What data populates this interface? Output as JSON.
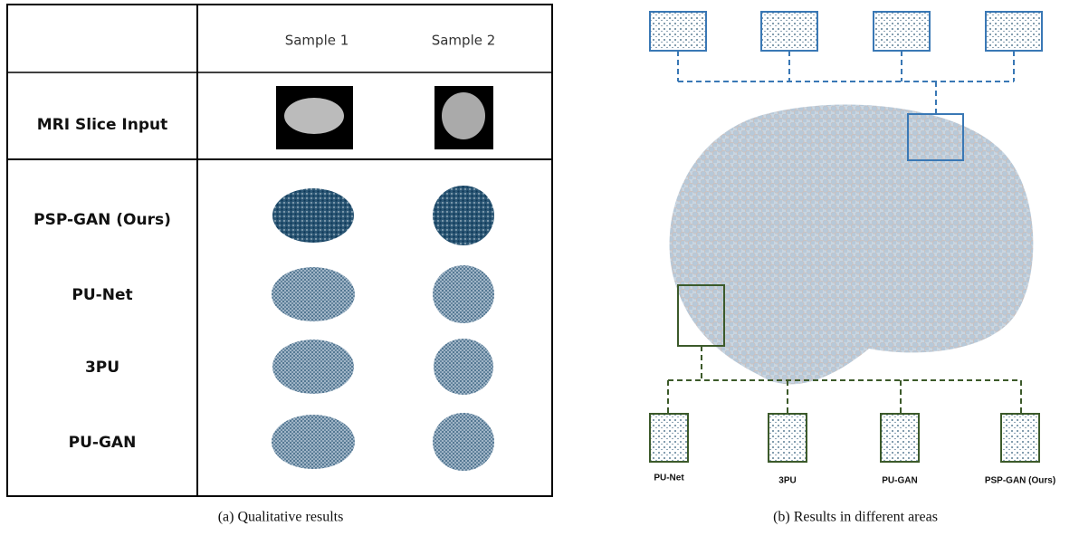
{
  "table": {
    "columns": [
      "Sample 1",
      "Sample 2"
    ],
    "rows": [
      "MRI Slice Input",
      "PSP-GAN (Ours)",
      "PU-Net",
      "3PU",
      "PU-GAN"
    ]
  },
  "caption_a": "(a) Qualitative results",
  "areas": {
    "labels": [
      "PU-Net",
      "3PU",
      "PU-GAN",
      "PSP-GAN (Ours)"
    ]
  },
  "caption_b": "(b) Results in different areas"
}
